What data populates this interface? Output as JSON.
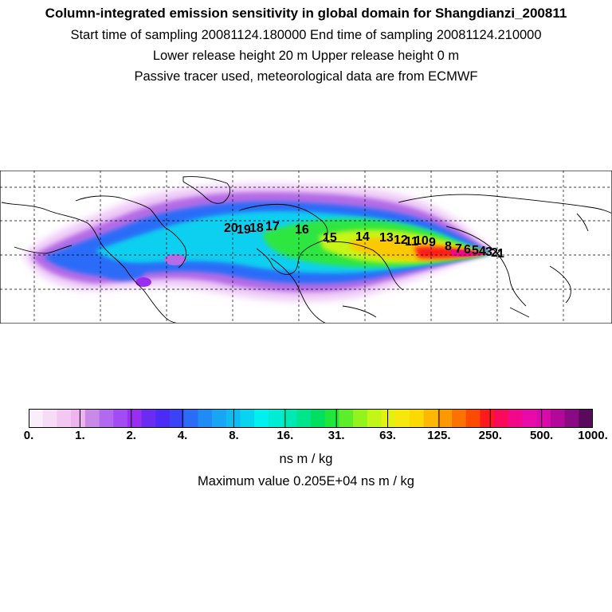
{
  "header": {
    "title": "Column-integrated emission sensitivity in global domain for Shangdianzi_200811",
    "line1": "Start time of sampling 20081124.180000     End time of sampling 20081124.210000",
    "line2": "Lower release height   20 m          Upper release height    0 m",
    "line3": "Passive tracer used, meteorological data are from ECMWF"
  },
  "colorbar": {
    "colors": [
      "#fbeefb",
      "#f7dcf7",
      "#f2c8f2",
      "#eeb4ee",
      "#c88ae6",
      "#b368f0",
      "#a24cf4",
      "#9a2ef0",
      "#6a2cf0",
      "#4c2cf4",
      "#3a44f6",
      "#2a6cf8",
      "#1f8cf4",
      "#17a6f4",
      "#0fbcf2",
      "#08d4f0",
      "#00f0f0",
      "#00ecd4",
      "#00e8b4",
      "#00e48c",
      "#00e060",
      "#1ee63a",
      "#5cee28",
      "#94f31c",
      "#c2f518",
      "#e2f012",
      "#f6e80c",
      "#fcd806",
      "#fcb802",
      "#fc9800",
      "#fc7200",
      "#fc4a00",
      "#fc1a1e",
      "#fa0a5a",
      "#f4088a",
      "#ea0aaa",
      "#d80aa8",
      "#b4089a",
      "#8a0a84",
      "#5a0a5a"
    ],
    "tick_labels": [
      "0.",
      "1.",
      "2.",
      "4.",
      "8.",
      "16.",
      "31.",
      "63.",
      "125.",
      "250.",
      "500.",
      "1000."
    ],
    "unit": "ns m / kg"
  },
  "max_value_text": "Maximum value  0.205E+04 ns m / kg",
  "map": {
    "day_labels": [
      "20",
      "19",
      "18",
      "17",
      "16",
      "15",
      "14",
      "13",
      "12",
      "11",
      "10",
      "9",
      "8",
      "7",
      "6",
      "5",
      "4",
      "3",
      "2",
      "1"
    ]
  }
}
